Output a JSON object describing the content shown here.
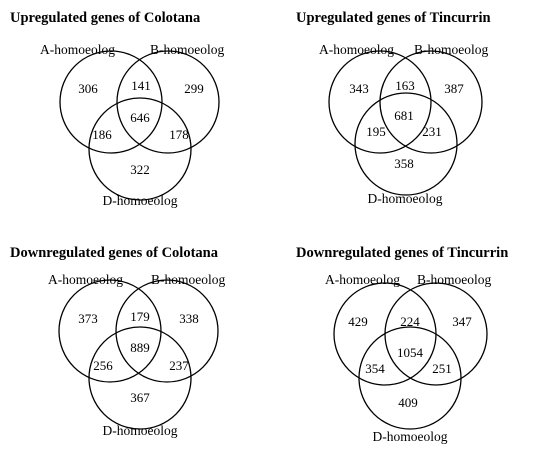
{
  "diagrams": [
    {
      "title": "Upregulated genes of Colotana",
      "labels": {
        "a": "A-homoeolog",
        "b": "B-homoeolog",
        "d": "D-homoeolog"
      },
      "regions": {
        "a_only": "306",
        "b_only": "299",
        "d_only": "322",
        "ab": "141",
        "ad": "186",
        "bd": "178",
        "abd": "646"
      }
    },
    {
      "title": "Upregulated genes of Tincurrin",
      "labels": {
        "a": "A-homoeolog",
        "b": "B-homoeolog",
        "d": "D-homoeolog"
      },
      "regions": {
        "a_only": "343",
        "b_only": "387",
        "d_only": "358",
        "ab": "163",
        "ad": "195",
        "bd": "231",
        "abd": "681"
      }
    },
    {
      "title": "Downregulated genes of Colotana",
      "labels": {
        "a": "A-homoeolog",
        "b": "B-homoeolog",
        "d": "D-homoeolog"
      },
      "regions": {
        "a_only": "373",
        "b_only": "338",
        "d_only": "367",
        "ab": "179",
        "ad": "256",
        "bd": "237",
        "abd": "889"
      }
    },
    {
      "title": "Downregulated genes of Tincurrin",
      "labels": {
        "a": "A-homoeolog",
        "b": "B-homoeolog",
        "d": "D-homoeolog"
      },
      "regions": {
        "a_only": "429",
        "b_only": "347",
        "d_only": "409",
        "ab": "224",
        "ad": "354",
        "bd": "251",
        "abd": "1054"
      }
    }
  ]
}
